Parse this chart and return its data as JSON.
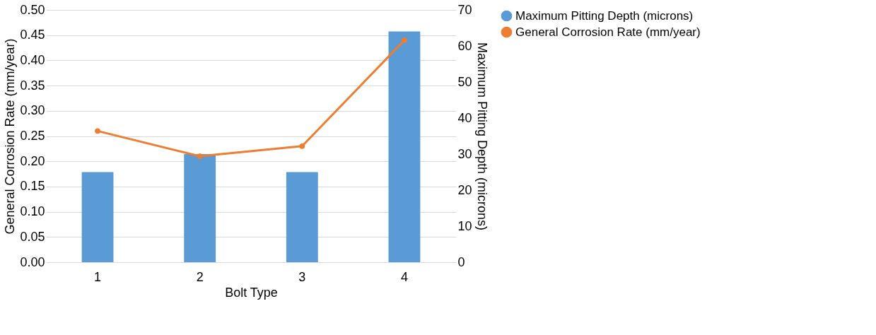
{
  "chart_data": {
    "type": "bar",
    "xlabel": "Bolt Type",
    "ylabel": "General Corrosion Rate (mm/year)",
    "y2label": "Maximum Pitting Depth (microns)",
    "categories": [
      "1",
      "2",
      "3",
      "4"
    ],
    "series": [
      {
        "name": "Maximum Pitting Depth (microns)",
        "axis": "y2",
        "color": "#5b9bd5",
        "values": [
          25,
          30,
          25,
          64
        ]
      },
      {
        "name": "General Corrosion Rate (mm/year)",
        "type": "line",
        "axis": "y",
        "color": "#ed7d31",
        "marker": "circle",
        "line_style": "solid",
        "values": [
          0.26,
          0.21,
          0.23,
          0.44
        ]
      }
    ],
    "ylim": [
      0,
      0.5
    ],
    "yticks": [
      {
        "value": 0,
        "label": "0.00"
      },
      {
        "value": 0.05,
        "label": "0.05"
      },
      {
        "value": 0.1,
        "label": "0.10"
      },
      {
        "value": 0.15,
        "label": "0.15"
      },
      {
        "value": 0.2,
        "label": "0.20"
      },
      {
        "value": 0.25,
        "label": "0.25"
      },
      {
        "value": 0.3,
        "label": "0.30"
      },
      {
        "value": 0.35,
        "label": "0.35"
      },
      {
        "value": 0.4,
        "label": "0.40"
      },
      {
        "value": 0.45,
        "label": "0.45"
      },
      {
        "value": 0.5,
        "label": "0.50"
      }
    ],
    "y2lim": [
      0,
      70
    ],
    "y2ticks": [
      0,
      10,
      20,
      30,
      40,
      50,
      60,
      70
    ],
    "grid": "y",
    "legend": "right"
  }
}
